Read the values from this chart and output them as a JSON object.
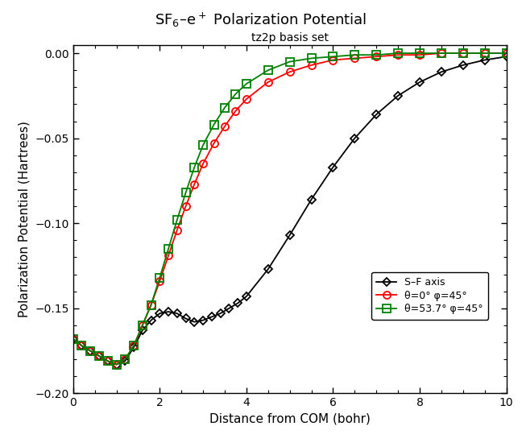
{
  "title_math": "SF$_6$–e$^+$ Polarization Potential",
  "subtitle": "tz2p basis set",
  "xlabel": "Distance from COM (bohr)",
  "ylabel": "Polarization Potential (Hartrees)",
  "xlim": [
    0,
    10
  ],
  "ylim": [
    -0.2,
    0.005
  ],
  "yticks": [
    0.0,
    -0.05,
    -0.1,
    -0.15,
    -0.2
  ],
  "xticks": [
    0,
    2,
    4,
    6,
    8,
    10
  ],
  "series": {
    "sf_axis": {
      "label": "S–F axis",
      "color": "black",
      "marker": "D",
      "markersize": 5.5,
      "x": [
        0.0,
        0.2,
        0.4,
        0.6,
        0.8,
        1.0,
        1.2,
        1.4,
        1.6,
        1.8,
        2.0,
        2.2,
        2.4,
        2.6,
        2.8,
        3.0,
        3.2,
        3.4,
        3.6,
        3.8,
        4.0,
        4.5,
        5.0,
        5.5,
        6.0,
        6.5,
        7.0,
        7.5,
        8.0,
        8.5,
        9.0,
        9.5,
        10.0
      ],
      "y": [
        -0.168,
        -0.172,
        -0.175,
        -0.178,
        -0.181,
        -0.183,
        -0.181,
        -0.173,
        -0.163,
        -0.157,
        -0.153,
        -0.152,
        -0.153,
        -0.156,
        -0.158,
        -0.157,
        -0.155,
        -0.153,
        -0.15,
        -0.147,
        -0.143,
        -0.127,
        -0.107,
        -0.086,
        -0.067,
        -0.05,
        -0.036,
        -0.025,
        -0.017,
        -0.011,
        -0.007,
        -0.004,
        -0.002
      ]
    },
    "theta0": {
      "label": "θ=0° φ=45°",
      "color": "red",
      "marker": "o",
      "markersize": 6.5,
      "x": [
        0.0,
        0.2,
        0.4,
        0.6,
        0.8,
        1.0,
        1.2,
        1.4,
        1.6,
        1.8,
        2.0,
        2.2,
        2.4,
        2.6,
        2.8,
        3.0,
        3.25,
        3.5,
        3.75,
        4.0,
        4.5,
        5.0,
        5.5,
        6.0,
        6.5,
        7.0,
        7.5,
        8.0,
        8.5,
        9.0,
        9.5,
        10.0
      ],
      "y": [
        -0.168,
        -0.172,
        -0.175,
        -0.178,
        -0.181,
        -0.183,
        -0.18,
        -0.172,
        -0.16,
        -0.148,
        -0.134,
        -0.119,
        -0.104,
        -0.09,
        -0.077,
        -0.065,
        -0.053,
        -0.043,
        -0.034,
        -0.027,
        -0.017,
        -0.011,
        -0.007,
        -0.004,
        -0.003,
        -0.002,
        -0.001,
        -0.001,
        0.0,
        0.0,
        0.0,
        0.0
      ]
    },
    "theta53": {
      "label": "θ=53.7° φ=45°",
      "color": "green",
      "marker": "s",
      "markersize": 6.5,
      "x": [
        0.0,
        0.2,
        0.4,
        0.6,
        0.8,
        1.0,
        1.2,
        1.4,
        1.6,
        1.8,
        2.0,
        2.2,
        2.4,
        2.6,
        2.8,
        3.0,
        3.25,
        3.5,
        3.75,
        4.0,
        4.5,
        5.0,
        5.5,
        6.0,
        6.5,
        7.0,
        7.5,
        8.0,
        8.5,
        9.0,
        9.5,
        10.0
      ],
      "y": [
        -0.168,
        -0.172,
        -0.175,
        -0.178,
        -0.181,
        -0.183,
        -0.18,
        -0.172,
        -0.16,
        -0.148,
        -0.132,
        -0.115,
        -0.098,
        -0.082,
        -0.067,
        -0.054,
        -0.042,
        -0.032,
        -0.024,
        -0.018,
        -0.01,
        -0.005,
        -0.003,
        -0.002,
        -0.001,
        -0.001,
        0.0,
        0.0,
        0.0,
        0.0,
        0.0,
        0.0
      ]
    }
  },
  "background": "#ffffff"
}
